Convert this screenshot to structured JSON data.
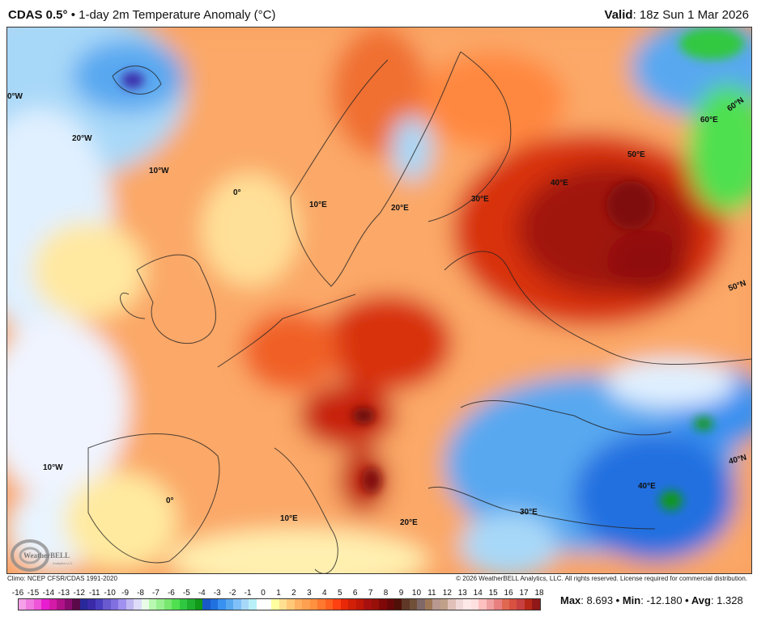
{
  "header": {
    "model": "CDAS 0.5°",
    "sep": " • ",
    "product": "1-day 2m Temperature Anomaly (°C)",
    "valid_label": "Valid",
    "valid_value": ": 18z Sun 1 Mar 2026"
  },
  "map": {
    "grid_labels": [
      "0°W",
      "20°W",
      "10°W",
      "0°",
      "10°E",
      "20°E",
      "30°E",
      "40°E",
      "50°E",
      "60°E",
      "60°N",
      "50°N",
      "40°N",
      "10°W",
      "0°",
      "10°E",
      "20°E",
      "30°E",
      "40°E"
    ],
    "logo_text": "WeatherBELL",
    "logo_sub": "Analytics LLC"
  },
  "footer": {
    "climo": "Climo: NCEP CFSR/CDAS 1991-2020",
    "copyright": "© 2026 WeatherBELL Analytics, LLC. All rights reserved. License required for commercial distribution."
  },
  "colorbar": {
    "ticks": [
      "-16",
      "-15",
      "-14",
      "-13",
      "-12",
      "-11",
      "-10",
      "-9",
      "-8",
      "-7",
      "-6",
      "-5",
      "-4",
      "-3",
      "-2",
      "-1",
      "0",
      "1",
      "2",
      "3",
      "4",
      "5",
      "6",
      "7",
      "8",
      "9",
      "10",
      "11",
      "12",
      "13",
      "14",
      "15",
      "16",
      "17",
      "18"
    ],
    "colors": [
      "#f5a0e8",
      "#f07ae0",
      "#ee55d8",
      "#e81cd0",
      "#d41aa8",
      "#b0128a",
      "#8a0c70",
      "#5a0a48",
      "#28289a",
      "#3a2aa8",
      "#4a3ec0",
      "#6a5ad0",
      "#8070e0",
      "#a090f0",
      "#c0b8f0",
      "#dcdcf8",
      "#e8fce8",
      "#b8f8b0",
      "#98f090",
      "#78e870",
      "#50e050",
      "#30c840",
      "#20b030",
      "#109818",
      "#1858c8",
      "#2070e0",
      "#3890f0",
      "#58a8f0",
      "#80c0f8",
      "#a8d8f8",
      "#b8f0f8",
      "#ffffff",
      "#ffffff",
      "#ffffa0",
      "#ffe090",
      "#ffc878",
      "#ffb060",
      "#ffa050",
      "#ff9040",
      "#ff7830",
      "#ff6020",
      "#ff4010",
      "#e82808",
      "#d02008",
      "#c01808",
      "#a81010",
      "#981008",
      "#800808",
      "#680808",
      "#501008",
      "#603828",
      "#705038",
      "#806868",
      "#a07858",
      "#b89890",
      "#c0a088",
      "#e0c0b8",
      "#f0d8d8",
      "#ffe8e8",
      "#ffe0e0",
      "#ffc0c0",
      "#f0a0a0",
      "#e88080",
      "#e06850",
      "#d85040",
      "#c84040",
      "#b82818",
      "#901818"
    ]
  },
  "stats": {
    "max_label": "Max",
    "max_value": ": 8.693",
    "min_label": "Min",
    "min_value": ": -12.180",
    "avg_label": "Avg",
    "avg_value": ": 1.328",
    "sep": " • "
  }
}
